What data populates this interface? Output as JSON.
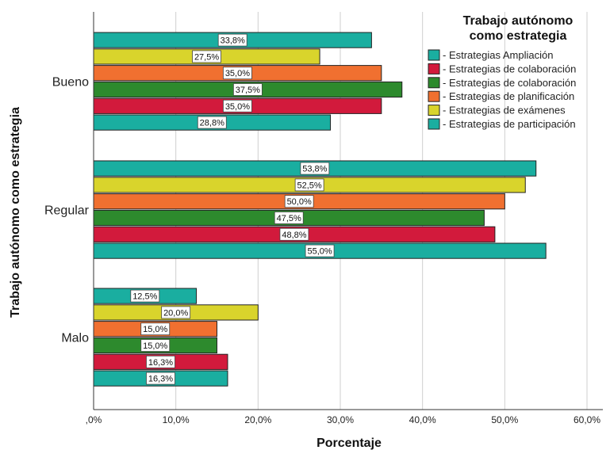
{
  "chart_data": {
    "type": "bar",
    "orientation": "horizontal",
    "categories": [
      "Bueno",
      "Regular",
      "Malo"
    ],
    "series": [
      {
        "name": "- Estrategias Ampliación",
        "color": "#1aaea0",
        "values": [
          33.8,
          53.8,
          12.5
        ],
        "labels": [
          "33,8%",
          "53,8%",
          "12,5%"
        ]
      },
      {
        "name": "- Estrategias de colaboración",
        "color": "#d9d42c",
        "values": [
          27.5,
          52.5,
          20.0
        ],
        "labels": [
          "27,5%",
          "52,5%",
          "20,0%"
        ]
      },
      {
        "name": "- Estrategias de colaboración",
        "color": "#f07030",
        "values": [
          35.0,
          50.0,
          15.0
        ],
        "labels": [
          "35,0%",
          "50,0%",
          "15,0%"
        ]
      },
      {
        "name": "- Estrategias de planificación",
        "color": "#2d8a2d",
        "values": [
          37.5,
          47.5,
          15.0
        ],
        "labels": [
          "37,5%",
          "47,5%",
          "15,0%"
        ]
      },
      {
        "name": "- Estrategias de exámenes",
        "color": "#d21a3c",
        "values": [
          35.0,
          48.8,
          16.3
        ],
        "labels": [
          "35,0%",
          "48,8%",
          "16,3%"
        ]
      },
      {
        "name": "- Estrategias de participación",
        "color": "#1aaea0",
        "values": [
          28.8,
          55.0,
          16.3
        ],
        "labels": [
          "28,8%",
          "55,0%",
          "16,3%"
        ]
      }
    ],
    "legend_colors": [
      "#1aaea0",
      "#d21a3c",
      "#2d8a2d",
      "#f07030",
      "#d9d42c",
      "#1aaea0"
    ],
    "xlim": [
      0,
      63
    ],
    "xticks": [
      0,
      10,
      20,
      30,
      40,
      50,
      60
    ],
    "xtick_labels": [
      ",0%",
      "10,0%",
      "20,0%",
      "30,0%",
      "40,0%",
      "50,0%",
      "60,0%"
    ],
    "xlabel": "Porcentaje",
    "ylabel": "Trabajo autónomo como estrategia",
    "legend_title": [
      "Trabajo autónomo",
      "como estrategia"
    ],
    "legend_position": "top-right",
    "grid": "vertical"
  }
}
